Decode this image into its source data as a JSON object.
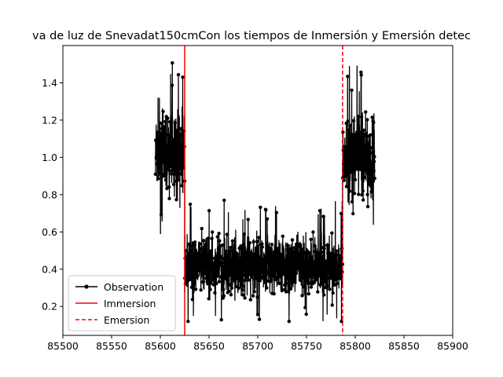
{
  "chart_data": {
    "type": "line",
    "title": "va de luz de Snevadat150cmCon los tiempos de Inmersión y Emersión detec",
    "xlabel": "",
    "ylabel": "",
    "xlim": [
      85500,
      85900
    ],
    "ylim": [
      0.045,
      1.6
    ],
    "xticks": [
      85500,
      85550,
      85600,
      85650,
      85700,
      85750,
      85800,
      85850,
      85900
    ],
    "yticks": [
      0.2,
      0.4,
      0.6,
      0.8,
      1.0,
      1.2,
      1.4
    ],
    "ytick_labels": [
      "0.2",
      "0.4",
      "0.6",
      "0.8",
      "1.0",
      "1.2",
      "1.4"
    ],
    "grid": false,
    "legend_position": "lower-left",
    "series": [
      {
        "name": "Observation",
        "style": "line-with-dot-markers",
        "color": "#000000",
        "x_start": 85595,
        "x_end": 85820,
        "segments": [
          {
            "x_from": 85595,
            "x_to": 85625,
            "mean": 1.02,
            "min": 0.52,
            "max": 1.52
          },
          {
            "x_from": 85625,
            "x_to": 85787,
            "mean": 0.42,
            "min": 0.12,
            "max": 0.82
          },
          {
            "x_from": 85787,
            "x_to": 85820,
            "mean": 1.0,
            "min": 0.5,
            "max": 1.5
          }
        ]
      },
      {
        "name": "Immersion",
        "style": "solid-vertical",
        "color": "#ff0000",
        "x": 85625
      },
      {
        "name": "Emersion",
        "style": "dashed-vertical",
        "color": "#ff0000",
        "x": 85787
      }
    ]
  }
}
